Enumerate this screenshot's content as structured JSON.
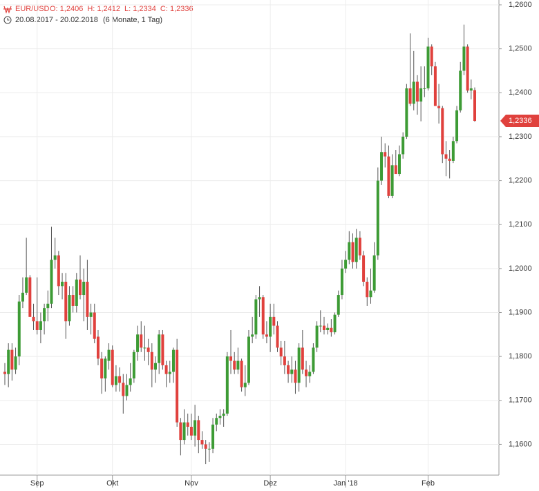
{
  "chart_data": {
    "type": "candlestick",
    "symbol": "EUR/USD",
    "ohlc_header": [
      "O: 1,2406",
      "H: 1,2412",
      "L: 1,2334",
      "C: 1,2336"
    ],
    "range": "20.08.2017 - 20.02.2018",
    "period": "(6 Monate, 1 Tag)",
    "up_color": "#3d9b35",
    "down_color": "#e0413d",
    "wick_color": "#555555",
    "grid": true,
    "ylim": [
      1.153,
      1.2611
    ],
    "yticks": [
      {
        "value": 1.26,
        "label": "1,2600"
      },
      {
        "value": 1.25,
        "label": "1,2500"
      },
      {
        "value": 1.24,
        "label": "1,2400"
      },
      {
        "value": 1.23,
        "label": "1,2300"
      },
      {
        "value": 1.22,
        "label": "1,2200"
      },
      {
        "value": 1.21,
        "label": "1,2100"
      },
      {
        "value": 1.2,
        "label": "1,2000"
      },
      {
        "value": 1.19,
        "label": "1,1900"
      },
      {
        "value": 1.18,
        "label": "1,1800"
      },
      {
        "value": 1.17,
        "label": "1,1700"
      },
      {
        "value": 1.16,
        "label": "1,1600"
      }
    ],
    "last_price": {
      "value": 1.2336,
      "label": "1,2336"
    },
    "categories": [
      null,
      null,
      null,
      null,
      null,
      null,
      null,
      null,
      null,
      "Sep",
      null,
      null,
      null,
      null,
      null,
      null,
      null,
      null,
      null,
      null,
      null,
      null,
      null,
      null,
      null,
      null,
      null,
      null,
      null,
      null,
      "Okt",
      null,
      null,
      null,
      null,
      null,
      null,
      null,
      null,
      null,
      null,
      null,
      null,
      null,
      null,
      null,
      null,
      null,
      null,
      null,
      null,
      null,
      "Nov",
      null,
      null,
      null,
      null,
      null,
      null,
      null,
      null,
      null,
      null,
      null,
      null,
      null,
      null,
      null,
      null,
      null,
      null,
      null,
      null,
      null,
      "Dez",
      null,
      null,
      null,
      null,
      null,
      null,
      null,
      null,
      null,
      null,
      null,
      null,
      null,
      null,
      null,
      null,
      null,
      null,
      null,
      null,
      "Jan '18",
      null,
      null,
      null,
      null,
      null,
      null,
      null,
      null,
      null,
      null,
      null,
      null,
      null,
      null,
      null,
      null,
      null,
      null,
      null,
      null,
      null,
      null,
      "Feb",
      null,
      null,
      null,
      null,
      null,
      null,
      null,
      null,
      null,
      null,
      null,
      null,
      null
    ],
    "open": [
      1.1765,
      1.176,
      1.1815,
      1.177,
      1.18,
      1.1925,
      1.1945,
      1.198,
      1.189,
      1.188,
      1.186,
      1.188,
      1.191,
      1.192,
      1.202,
      1.203,
      1.196,
      1.197,
      1.188,
      1.194,
      1.1915,
      1.1975,
      1.194,
      1.197,
      1.189,
      1.19,
      1.1845,
      1.1795,
      1.175,
      1.179,
      1.1815,
      1.1735,
      1.1755,
      1.174,
      1.171,
      1.1735,
      1.175,
      1.181,
      1.185,
      1.182,
      1.182,
      1.181,
      1.177,
      1.1785,
      1.185,
      1.178,
      1.176,
      1.1765,
      1.1815,
      1.165,
      1.161,
      1.165,
      1.164,
      1.162,
      1.1655,
      1.161,
      1.16,
      1.159,
      1.159,
      1.1645,
      1.166,
      1.1665,
      1.167,
      1.18,
      1.179,
      1.177,
      1.179,
      1.173,
      1.174,
      1.1845,
      1.185,
      1.193,
      1.1935,
      1.185,
      1.1845,
      1.189,
      1.187,
      1.182,
      1.18,
      1.178,
      1.176,
      1.177,
      1.174,
      1.182,
      1.177,
      1.1755,
      1.1765,
      1.182,
      1.187,
      1.187,
      1.186,
      1.1865,
      1.1855,
      1.1895,
      1.194,
      1.2,
      1.202,
      1.206,
      1.2015,
      1.207,
      1.203,
      1.197,
      1.1935,
      1.195,
      1.203,
      1.22,
      1.2265,
      1.2255,
      1.2165,
      1.2235,
      1.2215,
      1.226,
      1.23,
      1.241,
      1.2375,
      1.2425,
      1.238,
      1.241,
      1.241,
      1.2505,
      1.246,
      1.237,
      1.2365,
      1.226,
      1.225,
      1.2245,
      1.229,
      1.236,
      1.245,
      1.2505,
      1.2405,
      1.2406
    ],
    "high": [
      1.1785,
      1.183,
      1.183,
      1.182,
      1.194,
      1.198,
      1.207,
      1.1985,
      1.192,
      1.198,
      1.19,
      1.192,
      1.195,
      1.2095,
      1.207,
      1.204,
      1.199,
      1.199,
      1.196,
      1.196,
      1.199,
      1.203,
      1.2,
      1.202,
      1.192,
      1.192,
      1.186,
      1.181,
      1.18,
      1.183,
      1.1825,
      1.178,
      1.1775,
      1.176,
      1.176,
      1.1785,
      1.1815,
      1.187,
      1.188,
      1.187,
      1.184,
      1.183,
      1.18,
      1.186,
      1.186,
      1.179,
      1.179,
      1.182,
      1.184,
      1.166,
      1.168,
      1.167,
      1.167,
      1.169,
      1.1665,
      1.163,
      1.161,
      1.1605,
      1.166,
      1.167,
      1.168,
      1.168,
      1.181,
      1.186,
      1.181,
      1.182,
      1.1795,
      1.178,
      1.186,
      1.189,
      1.194,
      1.196,
      1.194,
      1.188,
      1.192,
      1.192,
      1.188,
      1.1835,
      1.1835,
      1.179,
      1.18,
      1.179,
      1.183,
      1.186,
      1.179,
      1.178,
      1.183,
      1.188,
      1.1905,
      1.189,
      1.1875,
      1.1885,
      1.19,
      1.195,
      1.202,
      1.204,
      1.2085,
      1.208,
      1.209,
      1.2085,
      1.204,
      1.198,
      1.2,
      1.206,
      1.223,
      1.23,
      1.2285,
      1.228,
      1.226,
      1.227,
      1.228,
      1.231,
      1.242,
      1.2535,
      1.2495,
      1.244,
      1.246,
      1.246,
      1.2525,
      1.251,
      1.247,
      1.242,
      1.237,
      1.229,
      1.227,
      1.23,
      1.237,
      1.247,
      1.2555,
      1.251,
      1.243,
      1.2412
    ],
    "low": [
      1.1735,
      1.173,
      1.1745,
      1.176,
      1.178,
      1.191,
      1.194,
      1.19,
      1.186,
      1.185,
      1.183,
      1.185,
      1.188,
      1.191,
      1.2,
      1.194,
      1.193,
      1.184,
      1.187,
      1.19,
      1.19,
      1.193,
      1.188,
      1.186,
      1.185,
      1.183,
      1.178,
      1.1715,
      1.172,
      1.177,
      1.173,
      1.172,
      1.172,
      1.167,
      1.17,
      1.172,
      1.174,
      1.179,
      1.181,
      1.179,
      1.178,
      1.173,
      1.174,
      1.176,
      1.177,
      1.173,
      1.174,
      1.174,
      1.164,
      1.1575,
      1.16,
      1.162,
      1.161,
      1.1595,
      1.158,
      1.159,
      1.1555,
      1.156,
      1.158,
      1.163,
      1.1645,
      1.164,
      1.1665,
      1.176,
      1.176,
      1.176,
      1.172,
      1.171,
      1.1735,
      1.183,
      1.184,
      1.189,
      1.184,
      1.183,
      1.181,
      1.185,
      1.181,
      1.178,
      1.176,
      1.174,
      1.174,
      1.1715,
      1.172,
      1.176,
      1.173,
      1.174,
      1.176,
      1.181,
      1.1855,
      1.185,
      1.185,
      1.1845,
      1.185,
      1.189,
      1.193,
      1.199,
      1.201,
      1.2,
      1.2,
      1.202,
      1.196,
      1.1915,
      1.192,
      1.1945,
      1.202,
      1.219,
      1.223,
      1.216,
      1.216,
      1.2215,
      1.221,
      1.225,
      1.2295,
      1.237,
      1.236,
      1.235,
      1.2335,
      1.239,
      1.2405,
      1.244,
      1.237,
      1.233,
      1.224,
      1.221,
      1.2205,
      1.224,
      1.2285,
      1.2355,
      1.244,
      1.24,
      1.2385,
      1.2334
    ],
    "close": [
      1.176,
      1.1815,
      1.177,
      1.18,
      1.1925,
      1.1945,
      1.198,
      1.189,
      1.188,
      1.186,
      1.188,
      1.191,
      1.192,
      1.202,
      1.203,
      1.196,
      1.197,
      1.188,
      1.194,
      1.1915,
      1.1975,
      1.194,
      1.197,
      1.189,
      1.19,
      1.184,
      1.1795,
      1.175,
      1.1795,
      1.1815,
      1.1735,
      1.1755,
      1.174,
      1.171,
      1.1735,
      1.175,
      1.181,
      1.185,
      1.182,
      1.182,
      1.181,
      1.177,
      1.1785,
      1.185,
      1.178,
      1.176,
      1.1765,
      1.1815,
      1.165,
      1.161,
      1.165,
      1.164,
      1.162,
      1.1655,
      1.161,
      1.16,
      1.159,
      1.159,
      1.1645,
      1.166,
      1.1665,
      1.167,
      1.18,
      1.179,
      1.177,
      1.179,
      1.173,
      1.174,
      1.1845,
      1.185,
      1.193,
      1.1935,
      1.185,
      1.1845,
      1.189,
      1.187,
      1.182,
      1.18,
      1.178,
      1.176,
      1.177,
      1.174,
      1.182,
      1.177,
      1.1755,
      1.1765,
      1.182,
      1.187,
      1.187,
      1.186,
      1.1865,
      1.1855,
      1.1895,
      1.194,
      1.2,
      1.202,
      1.206,
      1.2015,
      1.207,
      1.203,
      1.197,
      1.1935,
      1.195,
      1.203,
      1.22,
      1.2265,
      1.2255,
      1.2165,
      1.2235,
      1.2215,
      1.226,
      1.23,
      1.241,
      1.2375,
      1.2425,
      1.238,
      1.241,
      1.241,
      1.2505,
      1.246,
      1.237,
      1.2365,
      1.226,
      1.225,
      1.2245,
      1.229,
      1.236,
      1.245,
      1.2505,
      1.2405,
      1.241,
      1.2336
    ]
  }
}
